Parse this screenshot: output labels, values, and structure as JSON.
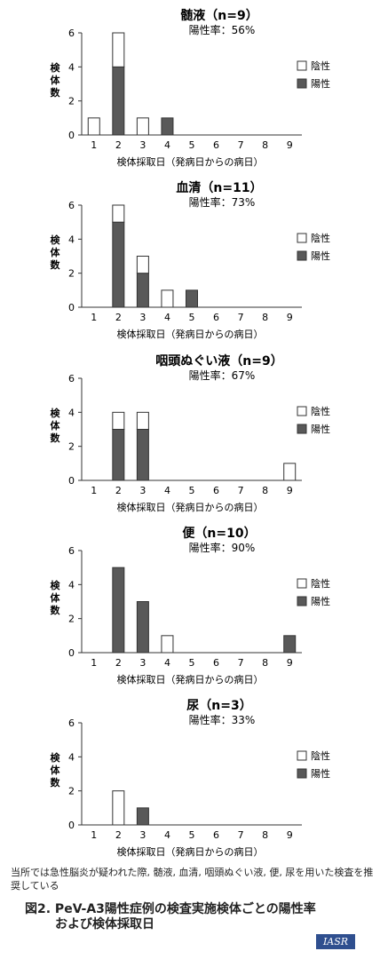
{
  "common": {
    "y_ticks": [
      0,
      2,
      4,
      6
    ],
    "x_ticks": [
      1,
      2,
      3,
      4,
      5,
      6,
      7,
      8,
      9
    ],
    "ylabel_chars": [
      "検",
      "体",
      "数"
    ],
    "xlabel": "検体採取日（発病日からの病日）",
    "legend": {
      "negative": "陰性",
      "positive": "陽性"
    },
    "colors": {
      "positive": "#595959",
      "negative": "#ffffff",
      "stroke": "#333333"
    }
  },
  "chart_data": [
    {
      "type": "bar",
      "title": "髄液（n=9）",
      "rate_label": "陽性率：56%",
      "categories": [
        1,
        2,
        3,
        4,
        5,
        6,
        7,
        8,
        9
      ],
      "ylim": [
        0,
        6
      ],
      "stacked": true,
      "series": [
        {
          "name": "陽性",
          "values": [
            0,
            4,
            0,
            1,
            0,
            0,
            0,
            0,
            0
          ]
        },
        {
          "name": "陰性",
          "values": [
            1,
            2,
            1,
            0,
            0,
            0,
            0,
            0,
            0
          ]
        }
      ]
    },
    {
      "type": "bar",
      "title": "血清（n=11）",
      "rate_label": "陽性率：73%",
      "categories": [
        1,
        2,
        3,
        4,
        5,
        6,
        7,
        8,
        9
      ],
      "ylim": [
        0,
        6
      ],
      "stacked": true,
      "series": [
        {
          "name": "陽性",
          "values": [
            0,
            5,
            2,
            0,
            1,
            0,
            0,
            0,
            0
          ]
        },
        {
          "name": "陰性",
          "values": [
            0,
            1,
            1,
            1,
            0,
            0,
            0,
            0,
            0
          ]
        }
      ]
    },
    {
      "type": "bar",
      "title": "咽頭ぬぐい液（n=9）",
      "rate_label": "陽性率：67%",
      "categories": [
        1,
        2,
        3,
        4,
        5,
        6,
        7,
        8,
        9
      ],
      "ylim": [
        0,
        6
      ],
      "stacked": true,
      "series": [
        {
          "name": "陽性",
          "values": [
            0,
            3,
            3,
            0,
            0,
            0,
            0,
            0,
            0
          ]
        },
        {
          "name": "陰性",
          "values": [
            0,
            1,
            1,
            0,
            0,
            0,
            0,
            0,
            1
          ]
        }
      ]
    },
    {
      "type": "bar",
      "title": "便（n=10）",
      "rate_label": "陽性率：90%",
      "categories": [
        1,
        2,
        3,
        4,
        5,
        6,
        7,
        8,
        9
      ],
      "ylim": [
        0,
        6
      ],
      "stacked": true,
      "series": [
        {
          "name": "陽性",
          "values": [
            0,
            5,
            3,
            0,
            0,
            0,
            0,
            0,
            1
          ]
        },
        {
          "name": "陰性",
          "values": [
            0,
            0,
            0,
            1,
            0,
            0,
            0,
            0,
            0
          ]
        }
      ]
    },
    {
      "type": "bar",
      "title": "尿（n=3）",
      "rate_label": "陽性率：33%",
      "categories": [
        1,
        2,
        3,
        4,
        5,
        6,
        7,
        8,
        9
      ],
      "ylim": [
        0,
        6
      ],
      "stacked": true,
      "series": [
        {
          "name": "陽性",
          "values": [
            0,
            0,
            1,
            0,
            0,
            0,
            0,
            0,
            0
          ]
        },
        {
          "name": "陰性",
          "values": [
            0,
            2,
            0,
            0,
            0,
            0,
            0,
            0,
            0
          ]
        }
      ]
    }
  ],
  "footnote": "当所では急性脳炎が疑われた際, 髄液, 血清, 咽頭ぬぐい液, 便, 尿を用いた検査を推奨している",
  "caption_line1": "図2. PeV-A3陽性症例の検査実施検体ごとの陽性率",
  "caption_line2": "および検体採取日",
  "logo_text": "IASR"
}
